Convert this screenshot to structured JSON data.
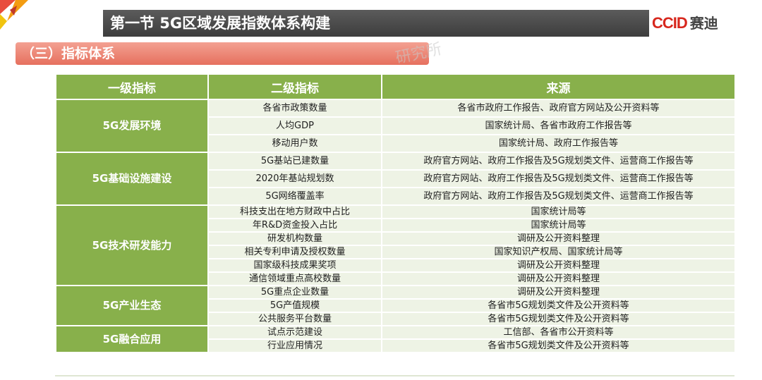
{
  "header": {
    "title": "第一节 5G区域发展指数体系构建",
    "logo_brand": "CCID",
    "logo_cn": "赛迪"
  },
  "section": {
    "title": "（三）指标体系"
  },
  "watermark": "研究所",
  "colors": {
    "header_bg": "#88b04b",
    "cell_bg": "#eef3e5",
    "title_bar": "#4a4a4a",
    "section_bar": "#e8796a",
    "logo_red": "#d7271d"
  },
  "table": {
    "headers": [
      "一级指标",
      "二级指标",
      "来源"
    ],
    "groups": [
      {
        "category": "5G发展环境",
        "rows": [
          {
            "indicator": "各省市政策数量",
            "source": "各省市政府工作报告、政府官方网站及公开资料等"
          },
          {
            "indicator": "人均GDP",
            "source": "国家统计局、各省市政府工作报告等"
          },
          {
            "indicator": "移动用户数",
            "source": "国家统计局、政府工作报告等"
          }
        ]
      },
      {
        "category": "5G基础设施建设",
        "rows": [
          {
            "indicator": "5G基站已建数量",
            "source": "政府官方网站、政府工作报告及5G规划类文件、运营商工作报告等"
          },
          {
            "indicator": "2020年基站规划数",
            "source": "政府官方网站、政府工作报告及5G规划类文件、运营商工作报告等"
          },
          {
            "indicator": "5G网络覆盖率",
            "source": "政府官方网站、政府工作报告及5G规划类文件、运营商工作报告等"
          }
        ]
      },
      {
        "category": "5G技术研发能力",
        "rows": [
          {
            "indicator": "科技支出在地方财政中占比",
            "source": "国家统计局等"
          },
          {
            "indicator": "年R&D资金投入占比",
            "source": "国家统计局等"
          },
          {
            "indicator": "研发机构数量",
            "source": "调研及公开资料整理"
          },
          {
            "indicator": "相关专利申请及授权数量",
            "source": "国家知识产权局、国家统计局等"
          },
          {
            "indicator": "国家级科技成果奖项",
            "source": "调研及公开资料整理"
          },
          {
            "indicator": "通信领域重点高校数量",
            "source": "调研及公开资料整理"
          }
        ]
      },
      {
        "category": "5G产业生态",
        "rows": [
          {
            "indicator": "5G重点企业数量",
            "source": "调研及公开资料整理"
          },
          {
            "indicator": "5G产值规模",
            "source": "各省市5G规划类文件及公开资料等"
          },
          {
            "indicator": "公共服务平台数量",
            "source": "各省市5G规划类文件及公开资料等"
          }
        ]
      },
      {
        "category": "5G融合应用",
        "rows": [
          {
            "indicator": "试点示范建设",
            "source": "工信部、各省市公开资料等"
          },
          {
            "indicator": "行业应用情况",
            "source": "各省市5G规划类文件及公开资料等"
          }
        ]
      }
    ]
  }
}
